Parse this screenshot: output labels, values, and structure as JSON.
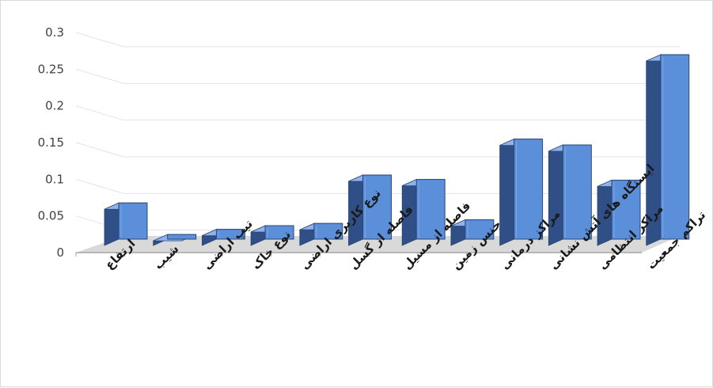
{
  "chart_data": {
    "type": "bar",
    "title": "",
    "xlabel": "",
    "ylabel": "",
    "ylim": [
      0,
      0.3
    ],
    "yticks": [
      0,
      0.05,
      0.1,
      0.15,
      0.2,
      0.25,
      0.3
    ],
    "ytick_labels": [
      "0",
      "0.05",
      "0.1",
      "0.15",
      "0.2",
      "0.25",
      "0.3"
    ],
    "categories": [
      "ارتفاع",
      "شیب",
      "تیپ اراضی",
      "نوع خاک",
      "نوع کاربری اراضی",
      "فاصله از گسل",
      "فاصله از مسیل",
      "جنس زمین",
      "مراکز درمانی",
      "ایستگاه های آتش نشانی",
      "مراکز انتظامی",
      "تراکم جمعیت"
    ],
    "values": [
      0.058,
      0.015,
      0.022,
      0.027,
      0.03,
      0.096,
      0.09,
      0.035,
      0.145,
      0.137,
      0.089,
      0.26
    ],
    "grid": true,
    "legend": "none",
    "style": "3d-column",
    "colors": {
      "bar_front": "#5b8fd9",
      "bar_side": "#2f4f86",
      "bar_top": "#8fb3ec",
      "floor": "#d9d9d9",
      "grid": "#e3e3e3"
    }
  }
}
